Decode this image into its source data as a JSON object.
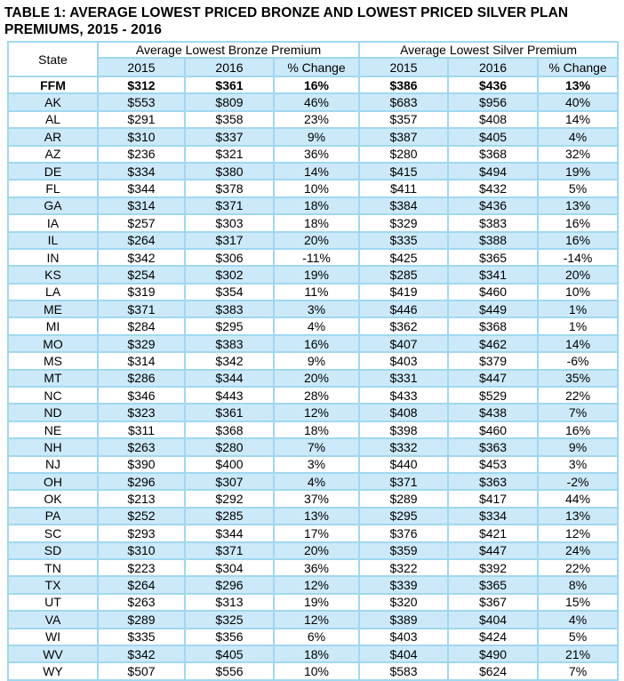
{
  "chart_data": {
    "type": "table",
    "title": "TABLE 1: AVERAGE LOWEST PRICED BRONZE AND LOWEST PRICED SILVER PLAN PREMIUMS, 2015 - 2016",
    "state_column_header": "State",
    "column_groups": [
      {
        "label": "Average Lowest Bronze Premium",
        "sub_headers": [
          "2015",
          "2016",
          "% Change"
        ]
      },
      {
        "label": "Average Lowest Silver Premium",
        "sub_headers": [
          "2015",
          "2016",
          "% Change"
        ]
      }
    ],
    "rows": [
      {
        "state": "FFM",
        "is_summary": true,
        "values": [
          "$312",
          "$361",
          "16%",
          "$386",
          "$436",
          "13%"
        ]
      },
      {
        "state": "AK",
        "values": [
          "$553",
          "$809",
          "46%",
          "$683",
          "$956",
          "40%"
        ]
      },
      {
        "state": "AL",
        "values": [
          "$291",
          "$358",
          "23%",
          "$357",
          "$408",
          "14%"
        ]
      },
      {
        "state": "AR",
        "values": [
          "$310",
          "$337",
          "9%",
          "$387",
          "$405",
          "4%"
        ]
      },
      {
        "state": "AZ",
        "values": [
          "$236",
          "$321",
          "36%",
          "$280",
          "$368",
          "32%"
        ]
      },
      {
        "state": "DE",
        "values": [
          "$334",
          "$380",
          "14%",
          "$415",
          "$494",
          "19%"
        ]
      },
      {
        "state": "FL",
        "values": [
          "$344",
          "$378",
          "10%",
          "$411",
          "$432",
          "5%"
        ]
      },
      {
        "state": "GA",
        "values": [
          "$314",
          "$371",
          "18%",
          "$384",
          "$436",
          "13%"
        ]
      },
      {
        "state": "IA",
        "values": [
          "$257",
          "$303",
          "18%",
          "$329",
          "$383",
          "16%"
        ]
      },
      {
        "state": "IL",
        "values": [
          "$264",
          "$317",
          "20%",
          "$335",
          "$388",
          "16%"
        ]
      },
      {
        "state": "IN",
        "values": [
          "$342",
          "$306",
          "-11%",
          "$425",
          "$365",
          "-14%"
        ]
      },
      {
        "state": "KS",
        "values": [
          "$254",
          "$302",
          "19%",
          "$285",
          "$341",
          "20%"
        ]
      },
      {
        "state": "LA",
        "values": [
          "$319",
          "$354",
          "11%",
          "$419",
          "$460",
          "10%"
        ]
      },
      {
        "state": "ME",
        "values": [
          "$371",
          "$383",
          "3%",
          "$446",
          "$449",
          "1%"
        ]
      },
      {
        "state": "MI",
        "values": [
          "$284",
          "$295",
          "4%",
          "$362",
          "$368",
          "1%"
        ]
      },
      {
        "state": "MO",
        "values": [
          "$329",
          "$383",
          "16%",
          "$407",
          "$462",
          "14%"
        ]
      },
      {
        "state": "MS",
        "values": [
          "$314",
          "$342",
          "9%",
          "$403",
          "$379",
          "-6%"
        ]
      },
      {
        "state": "MT",
        "values": [
          "$286",
          "$344",
          "20%",
          "$331",
          "$447",
          "35%"
        ]
      },
      {
        "state": "NC",
        "values": [
          "$346",
          "$443",
          "28%",
          "$433",
          "$529",
          "22%"
        ]
      },
      {
        "state": "ND",
        "values": [
          "$323",
          "$361",
          "12%",
          "$408",
          "$438",
          "7%"
        ]
      },
      {
        "state": "NE",
        "values": [
          "$311",
          "$368",
          "18%",
          "$398",
          "$460",
          "16%"
        ]
      },
      {
        "state": "NH",
        "values": [
          "$263",
          "$280",
          "7%",
          "$332",
          "$363",
          "9%"
        ]
      },
      {
        "state": "NJ",
        "values": [
          "$390",
          "$400",
          "3%",
          "$440",
          "$453",
          "3%"
        ]
      },
      {
        "state": "OH",
        "values": [
          "$296",
          "$307",
          "4%",
          "$371",
          "$363",
          "-2%"
        ]
      },
      {
        "state": "OK",
        "values": [
          "$213",
          "$292",
          "37%",
          "$289",
          "$417",
          "44%"
        ]
      },
      {
        "state": "PA",
        "values": [
          "$252",
          "$285",
          "13%",
          "$295",
          "$334",
          "13%"
        ]
      },
      {
        "state": "SC",
        "values": [
          "$293",
          "$344",
          "17%",
          "$376",
          "$421",
          "12%"
        ]
      },
      {
        "state": "SD",
        "values": [
          "$310",
          "$371",
          "20%",
          "$359",
          "$447",
          "24%"
        ]
      },
      {
        "state": "TN",
        "values": [
          "$223",
          "$304",
          "36%",
          "$322",
          "$392",
          "22%"
        ]
      },
      {
        "state": "TX",
        "values": [
          "$264",
          "$296",
          "12%",
          "$339",
          "$365",
          "8%"
        ]
      },
      {
        "state": "UT",
        "values": [
          "$263",
          "$313",
          "19%",
          "$320",
          "$367",
          "15%"
        ]
      },
      {
        "state": "VA",
        "values": [
          "$289",
          "$325",
          "12%",
          "$389",
          "$404",
          "4%"
        ]
      },
      {
        "state": "WI",
        "values": [
          "$335",
          "$356",
          "6%",
          "$403",
          "$424",
          "5%"
        ]
      },
      {
        "state": "WV",
        "values": [
          "$342",
          "$405",
          "18%",
          "$404",
          "$490",
          "21%"
        ]
      },
      {
        "state": "WY",
        "values": [
          "$507",
          "$556",
          "10%",
          "$583",
          "$624",
          "7%"
        ]
      }
    ]
  },
  "colors": {
    "row_shading": "#cce9fa",
    "table_border": "#9fd8f0",
    "text": "#000000",
    "background": "#ffffff"
  }
}
